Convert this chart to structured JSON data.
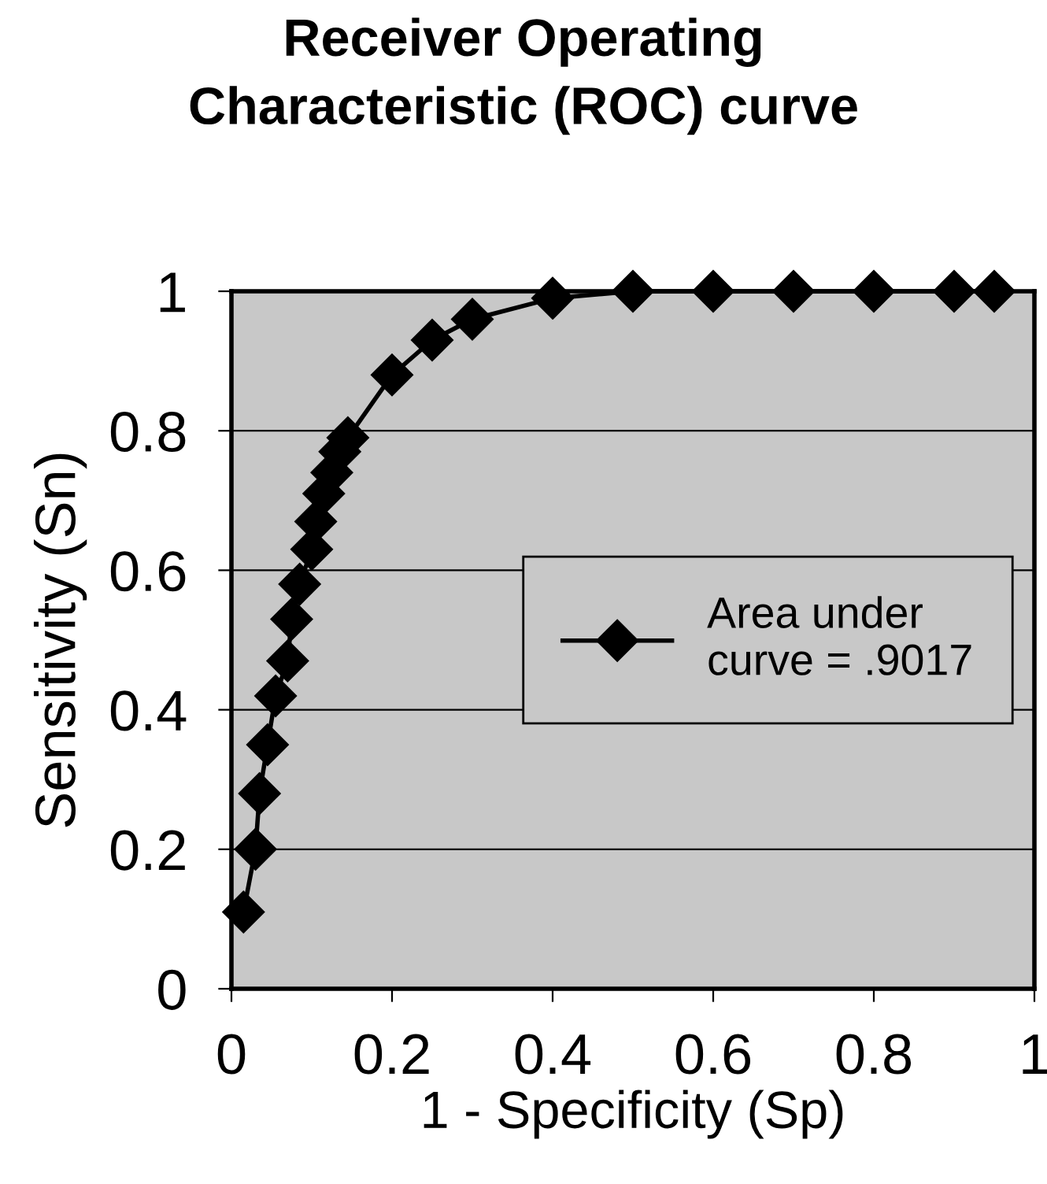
{
  "chart_data": {
    "type": "line",
    "title": "Receiver Operating\nCharacteristic (ROC) curve",
    "xlabel": "1 - Specificity (Sp)",
    "ylabel": "Sensitivity (Sn)",
    "x": [
      0.015,
      0.03,
      0.035,
      0.045,
      0.055,
      0.07,
      0.075,
      0.085,
      0.1,
      0.105,
      0.115,
      0.125,
      0.135,
      0.145,
      0.2,
      0.25,
      0.3,
      0.4,
      0.5,
      0.6,
      0.7,
      0.8,
      0.9,
      0.95
    ],
    "series": [
      {
        "name": "Area under\ncurve = .9017",
        "color": "#000000",
        "values": [
          0.11,
          0.2,
          0.28,
          0.35,
          0.42,
          0.47,
          0.53,
          0.58,
          0.63,
          0.67,
          0.71,
          0.74,
          0.77,
          0.79,
          0.88,
          0.93,
          0.96,
          0.99,
          1,
          1,
          1,
          1,
          1,
          1
        ]
      }
    ],
    "xlim": [
      0,
      1
    ],
    "ylim": [
      0,
      1
    ],
    "xticks": [
      0,
      0.2,
      0.4,
      0.6,
      0.8,
      1
    ],
    "yticks": [
      0,
      0.2,
      0.4,
      0.6,
      0.8,
      1
    ],
    "grid": "y",
    "legend": "right",
    "marker": "diamond",
    "line_style": "solid"
  }
}
